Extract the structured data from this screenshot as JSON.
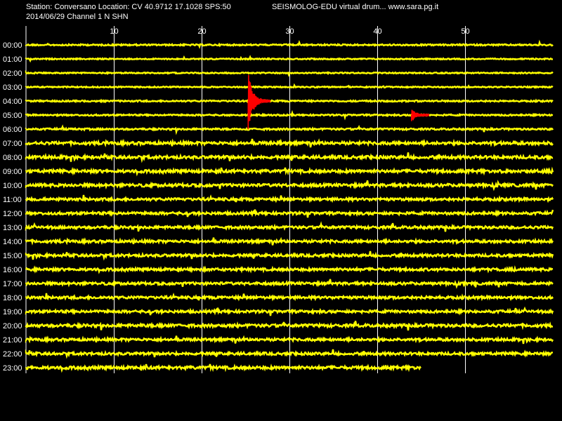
{
  "header": {
    "station_line": "Station: Conversano Location: CV 40.9712 17.1028 SPS:50",
    "brand": "SEISMOLOG-EDU virtual drum... www.sara.pg.it",
    "date_channel": "2014/06/29  Channel 1 N SHN"
  },
  "chart_data": {
    "type": "line",
    "title": "",
    "x_ticks": [
      10,
      20,
      30,
      40,
      50
    ],
    "x_range_minutes": [
      0,
      60
    ],
    "grid": true,
    "hours": [
      "00:00",
      "01:00",
      "02:00",
      "03:00",
      "04:00",
      "05:00",
      "06:00",
      "07:00",
      "08:00",
      "09:00",
      "10:00",
      "11:00",
      "12:00",
      "13:00",
      "14:00",
      "15:00",
      "16:00",
      "17:00",
      "18:00",
      "19:00",
      "20:00",
      "21:00",
      "22:00",
      "23:00"
    ],
    "last_trace_end_minute": 45,
    "noise_level": [
      0.5,
      0.4,
      0.4,
      0.4,
      0.5,
      0.5,
      0.6,
      1.0,
      1.0,
      1.0,
      1.0,
      0.9,
      0.9,
      0.9,
      0.9,
      0.9,
      0.9,
      0.9,
      0.9,
      0.9,
      1.0,
      0.9,
      0.9,
      1.0
    ],
    "events": [
      {
        "hour": "04:00",
        "start_minute": 25.3,
        "duration_minutes": 2.5,
        "peak_amplitude": 44,
        "color": "#ff0000"
      },
      {
        "hour": "05:00",
        "start_minute": 43.9,
        "duration_minutes": 2.0,
        "peak_amplitude": 9,
        "color": "#ff0000"
      }
    ],
    "colors": {
      "trace": "#ffff00",
      "event": "#ff0000",
      "grid": "#ffffff",
      "label": "#ffffff",
      "background": "#000000"
    }
  }
}
